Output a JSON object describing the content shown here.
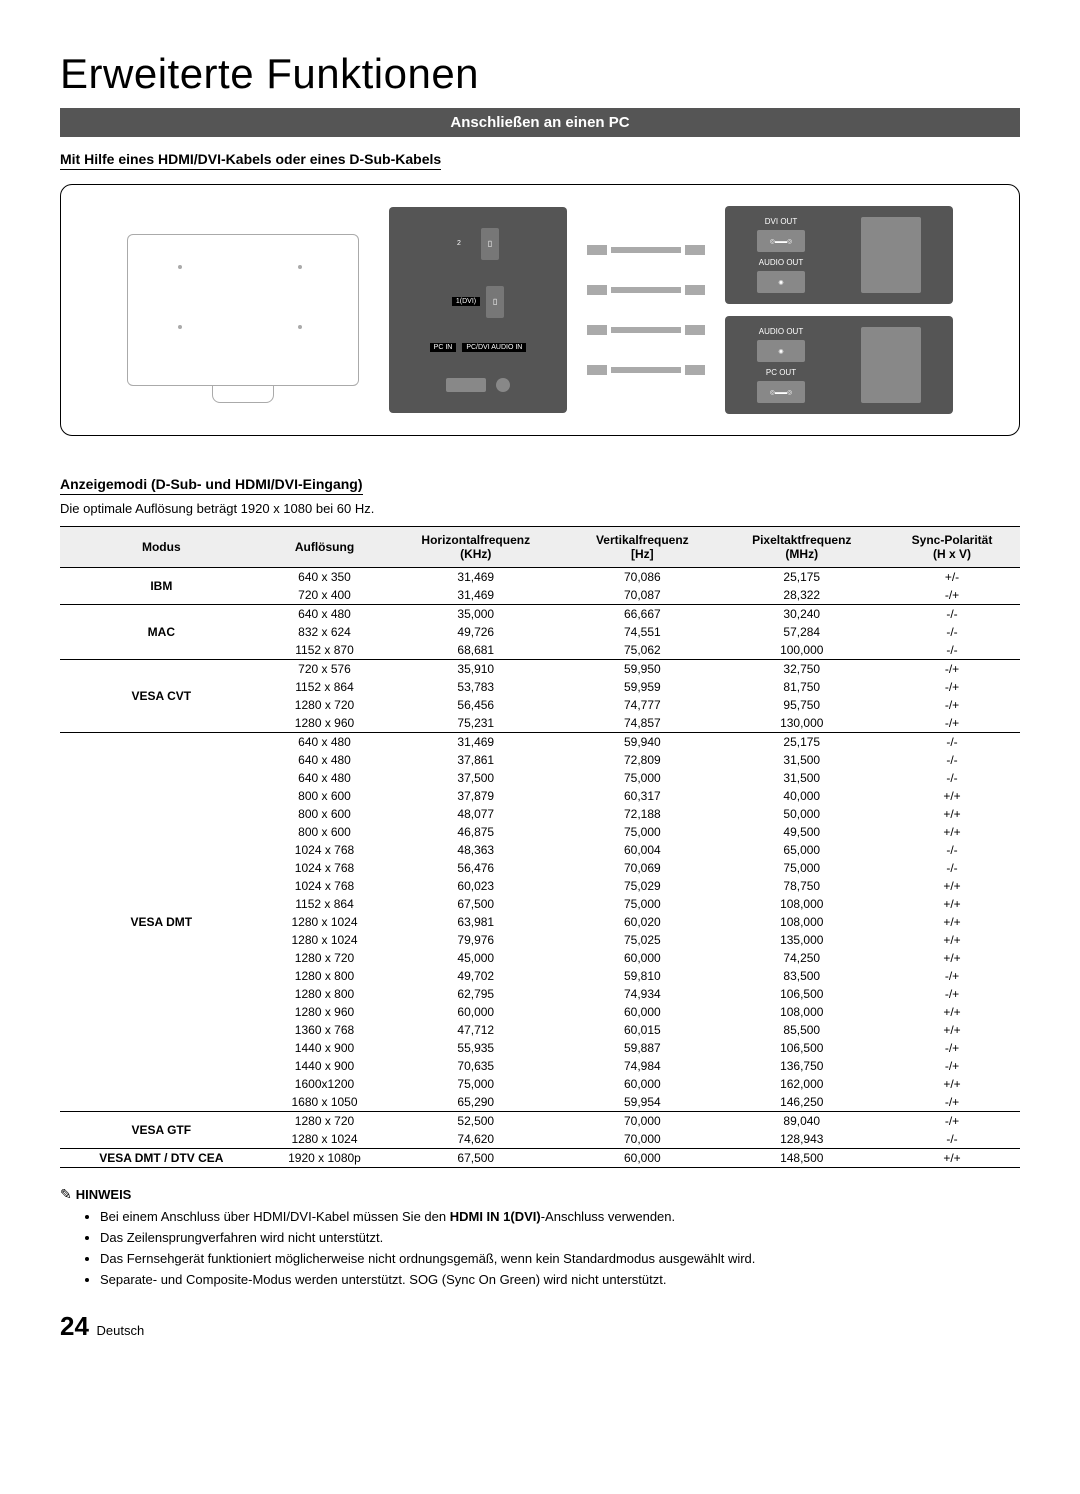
{
  "title": "Erweiterte Funktionen",
  "banner": "Anschließen an einen PC",
  "subhead1": "Mit Hilfe eines HDMI/DVI-Kabels oder eines D-Sub-Kabels",
  "diagram": {
    "panel_labels": {
      "port1": "1(DVI)",
      "pcin": "PC IN",
      "audioin": "PC/DVI AUDIO IN"
    },
    "box1": {
      "dvi": "DVI OUT",
      "audio": "AUDIO OUT"
    },
    "box2": {
      "audio": "AUDIO OUT",
      "pc": "PC OUT"
    }
  },
  "subhead2": "Anzeigemodi (D-Sub- und HDMI/DVI-Eingang)",
  "optimal": "Die optimale Auflösung beträgt 1920 x 1080 bei 60 Hz.",
  "columns": [
    "Modus",
    "Auflösung",
    "Horizontalfrequenz (KHz)",
    "Vertikalfrequenz [Hz]",
    "Pixeltaktfrequenz (MHz)",
    "Sync-Polarität (H x V)"
  ],
  "col_main": {
    "c1": "Modus",
    "c2": "Auflösung",
    "c3a": "Horizontalfrequenz",
    "c3b": "(KHz)",
    "c4a": "Vertikalfrequenz",
    "c4b": "[Hz]",
    "c5a": "Pixeltaktfrequenz",
    "c5b": "(MHz)",
    "c6a": "Sync-Polarität",
    "c6b": "(H x V)"
  },
  "groups": [
    {
      "mode": "IBM",
      "rows": [
        [
          "640 x 350",
          "31,469",
          "70,086",
          "25,175",
          "+/-"
        ],
        [
          "720 x 400",
          "31,469",
          "70,087",
          "28,322",
          "-/+"
        ]
      ]
    },
    {
      "mode": "MAC",
      "rows": [
        [
          "640 x 480",
          "35,000",
          "66,667",
          "30,240",
          "-/-"
        ],
        [
          "832 x 624",
          "49,726",
          "74,551",
          "57,284",
          "-/-"
        ],
        [
          "1152 x 870",
          "68,681",
          "75,062",
          "100,000",
          "-/-"
        ]
      ]
    },
    {
      "mode": "VESA CVT",
      "rows": [
        [
          "720 x 576",
          "35,910",
          "59,950",
          "32,750",
          "-/+"
        ],
        [
          "1152 x 864",
          "53,783",
          "59,959",
          "81,750",
          "-/+"
        ],
        [
          "1280 x 720",
          "56,456",
          "74,777",
          "95,750",
          "-/+"
        ],
        [
          "1280 x 960",
          "75,231",
          "74,857",
          "130,000",
          "-/+"
        ]
      ]
    },
    {
      "mode": "VESA DMT",
      "rows": [
        [
          "640 x 480",
          "31,469",
          "59,940",
          "25,175",
          "-/-"
        ],
        [
          "640 x 480",
          "37,861",
          "72,809",
          "31,500",
          "-/-"
        ],
        [
          "640 x 480",
          "37,500",
          "75,000",
          "31,500",
          "-/-"
        ],
        [
          "800 x 600",
          "37,879",
          "60,317",
          "40,000",
          "+/+"
        ],
        [
          "800 x 600",
          "48,077",
          "72,188",
          "50,000",
          "+/+"
        ],
        [
          "800 x 600",
          "46,875",
          "75,000",
          "49,500",
          "+/+"
        ],
        [
          "1024 x 768",
          "48,363",
          "60,004",
          "65,000",
          "-/-"
        ],
        [
          "1024 x 768",
          "56,476",
          "70,069",
          "75,000",
          "-/-"
        ],
        [
          "1024 x 768",
          "60,023",
          "75,029",
          "78,750",
          "+/+"
        ],
        [
          "1152 x 864",
          "67,500",
          "75,000",
          "108,000",
          "+/+"
        ],
        [
          "1280 x 1024",
          "63,981",
          "60,020",
          "108,000",
          "+/+"
        ],
        [
          "1280 x 1024",
          "79,976",
          "75,025",
          "135,000",
          "+/+"
        ],
        [
          "1280 x 720",
          "45,000",
          "60,000",
          "74,250",
          "+/+"
        ],
        [
          "1280 x 800",
          "49,702",
          "59,810",
          "83,500",
          "-/+"
        ],
        [
          "1280 x 800",
          "62,795",
          "74,934",
          "106,500",
          "-/+"
        ],
        [
          "1280 x 960",
          "60,000",
          "60,000",
          "108,000",
          "+/+"
        ],
        [
          "1360 x 768",
          "47,712",
          "60,015",
          "85,500",
          "+/+"
        ],
        [
          "1440 x 900",
          "55,935",
          "59,887",
          "106,500",
          "-/+"
        ],
        [
          "1440 x 900",
          "70,635",
          "74,984",
          "136,750",
          "-/+"
        ],
        [
          "1600x1200",
          "75,000",
          "60,000",
          "162,000",
          "+/+"
        ],
        [
          "1680 x 1050",
          "65,290",
          "59,954",
          "146,250",
          "-/+"
        ]
      ]
    },
    {
      "mode": "VESA GTF",
      "rows": [
        [
          "1280 x 720",
          "52,500",
          "70,000",
          "89,040",
          "-/+"
        ],
        [
          "1280 x 1024",
          "74,620",
          "70,000",
          "128,943",
          "-/-"
        ]
      ]
    },
    {
      "mode": "VESA DMT / DTV CEA",
      "rows": [
        [
          "1920 x 1080p",
          "67,500",
          "60,000",
          "148,500",
          "+/+"
        ]
      ]
    }
  ],
  "hinweis_label": "HINWEIS",
  "hinweis_items": [
    {
      "pre": "Bei einem Anschluss über HDMI/DVI-Kabel müssen Sie den ",
      "bold": "HDMI IN 1(DVI)",
      "post": "-Anschluss verwenden."
    },
    {
      "pre": "Das Zeilensprungverfahren wird nicht unterstützt.",
      "bold": "",
      "post": ""
    },
    {
      "pre": "Das Fernsehgerät funktioniert möglicherweise nicht ordnungsgemäß, wenn kein Standardmodus ausgewählt wird.",
      "bold": "",
      "post": ""
    },
    {
      "pre": "Separate- und Composite-Modus werden unterstützt. SOG (Sync On Green) wird nicht unterstützt.",
      "bold": "",
      "post": ""
    }
  ],
  "page_number": "24",
  "page_lang": "Deutsch"
}
